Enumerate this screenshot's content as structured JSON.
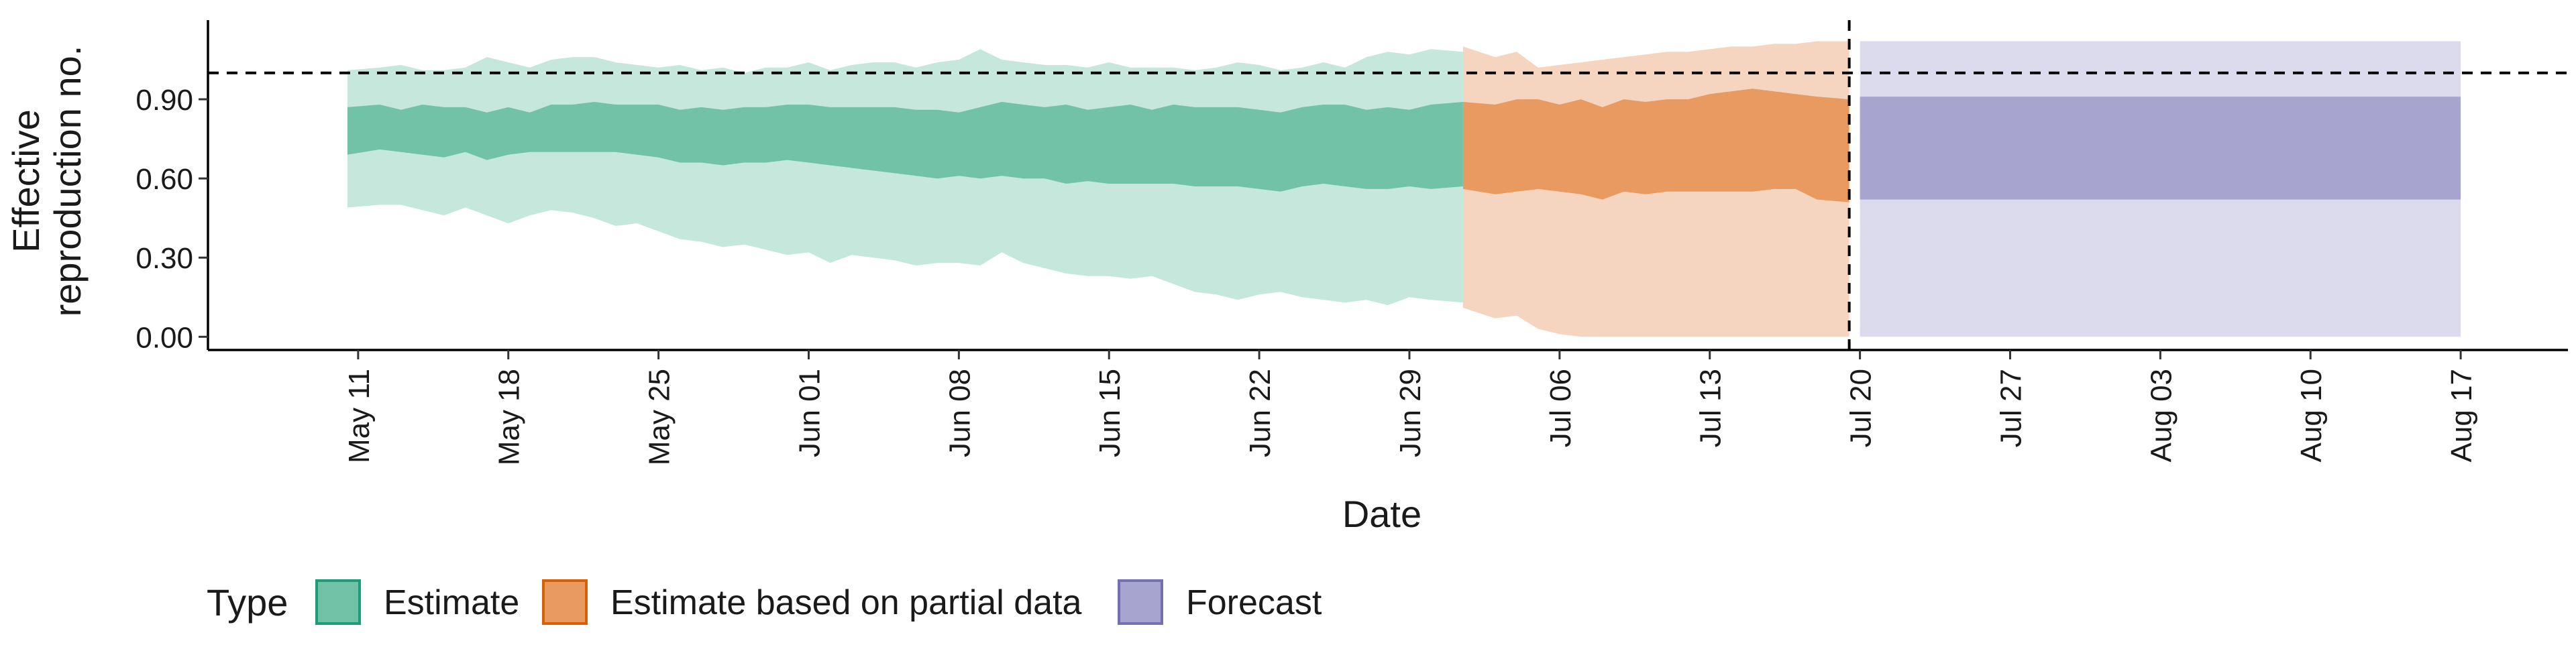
{
  "chart_data": {
    "type": "area",
    "xlabel": "Date",
    "ylabel_lines": [
      "Effective",
      "reproduction no."
    ],
    "ylim": [
      -0.05,
      1.2
    ],
    "yticks": [
      0.0,
      0.3,
      0.6,
      0.9
    ],
    "ytick_labels": [
      "0.00",
      "0.30",
      "0.60",
      "0.90"
    ],
    "x_start": "2020-05-04",
    "x_end": "2020-08-22",
    "xticks": [
      "2020-05-11",
      "2020-05-18",
      "2020-05-25",
      "2020-06-01",
      "2020-06-08",
      "2020-06-15",
      "2020-06-22",
      "2020-06-29",
      "2020-07-06",
      "2020-07-13",
      "2020-07-20",
      "2020-07-27",
      "2020-08-03",
      "2020-08-10",
      "2020-08-17"
    ],
    "xtick_labels": [
      "May 11",
      "May 18",
      "May 25",
      "Jun 01",
      "Jun 08",
      "Jun 15",
      "Jun 22",
      "Jun 29",
      "Jul 06",
      "Jul 13",
      "Jul 20",
      "Jul 27",
      "Aug 03",
      "Aug 10",
      "Aug 17"
    ],
    "reference_line_y": 1.0,
    "vertical_line_date": "2020-07-19",
    "legend": {
      "title": "Type",
      "position": "bottom",
      "items": [
        {
          "label": "Estimate",
          "fill": "#72c2a7",
          "border": "#1b9e77"
        },
        {
          "label": "Estimate based on partial data",
          "fill": "#e89a60",
          "border": "#d95f02"
        },
        {
          "label": "Forecast",
          "fill": "#a8a4d0",
          "border": "#7570b3"
        }
      ]
    },
    "series": [
      {
        "name": "Estimate",
        "inner_color": "#72c2a7",
        "outer_color": "#c5e7dc",
        "dates": [
          "2020-05-11",
          "2020-05-12",
          "2020-05-13",
          "2020-05-14",
          "2020-05-15",
          "2020-05-16",
          "2020-05-17",
          "2020-05-18",
          "2020-05-19",
          "2020-05-20",
          "2020-05-21",
          "2020-05-22",
          "2020-05-23",
          "2020-05-24",
          "2020-05-25",
          "2020-05-26",
          "2020-05-27",
          "2020-05-28",
          "2020-05-29",
          "2020-05-30",
          "2020-05-31",
          "2020-06-01",
          "2020-06-02",
          "2020-06-03",
          "2020-06-04",
          "2020-06-05",
          "2020-06-06",
          "2020-06-07",
          "2020-06-08",
          "2020-06-09",
          "2020-06-10",
          "2020-06-11",
          "2020-06-12",
          "2020-06-13",
          "2020-06-14",
          "2020-06-15",
          "2020-06-16",
          "2020-06-17",
          "2020-06-18",
          "2020-06-19",
          "2020-06-20",
          "2020-06-21",
          "2020-06-22",
          "2020-06-23",
          "2020-06-24",
          "2020-06-25",
          "2020-06-26",
          "2020-06-27",
          "2020-06-28",
          "2020-06-29",
          "2020-06-30",
          "2020-07-01"
        ],
        "lower_90": [
          0.49,
          0.5,
          0.5,
          0.48,
          0.46,
          0.49,
          0.46,
          0.43,
          0.46,
          0.48,
          0.47,
          0.45,
          0.42,
          0.43,
          0.4,
          0.37,
          0.36,
          0.34,
          0.35,
          0.33,
          0.31,
          0.32,
          0.28,
          0.31,
          0.3,
          0.29,
          0.27,
          0.28,
          0.28,
          0.27,
          0.32,
          0.28,
          0.26,
          0.24,
          0.23,
          0.23,
          0.22,
          0.23,
          0.2,
          0.17,
          0.16,
          0.14,
          0.16,
          0.17,
          0.15,
          0.14,
          0.13,
          0.14,
          0.12,
          0.15,
          0.14,
          0.13
        ],
        "lower_50": [
          0.69,
          0.71,
          0.7,
          0.69,
          0.68,
          0.7,
          0.67,
          0.69,
          0.7,
          0.7,
          0.7,
          0.7,
          0.7,
          0.69,
          0.68,
          0.66,
          0.66,
          0.65,
          0.66,
          0.66,
          0.67,
          0.66,
          0.65,
          0.64,
          0.63,
          0.62,
          0.61,
          0.6,
          0.61,
          0.6,
          0.61,
          0.6,
          0.6,
          0.58,
          0.59,
          0.58,
          0.58,
          0.58,
          0.58,
          0.57,
          0.57,
          0.57,
          0.56,
          0.55,
          0.57,
          0.58,
          0.57,
          0.56,
          0.56,
          0.57,
          0.56,
          0.57
        ],
        "upper_50": [
          0.87,
          0.88,
          0.86,
          0.88,
          0.87,
          0.87,
          0.85,
          0.87,
          0.85,
          0.88,
          0.88,
          0.89,
          0.88,
          0.88,
          0.88,
          0.86,
          0.87,
          0.86,
          0.87,
          0.87,
          0.88,
          0.88,
          0.87,
          0.87,
          0.87,
          0.87,
          0.86,
          0.86,
          0.85,
          0.87,
          0.89,
          0.88,
          0.87,
          0.88,
          0.86,
          0.87,
          0.88,
          0.86,
          0.88,
          0.87,
          0.87,
          0.87,
          0.86,
          0.85,
          0.87,
          0.88,
          0.88,
          0.86,
          0.87,
          0.86,
          0.88,
          0.89
        ],
        "upper_90": [
          1.01,
          1.02,
          1.03,
          1.01,
          1.01,
          1.02,
          1.06,
          1.04,
          1.02,
          1.05,
          1.06,
          1.06,
          1.04,
          1.03,
          1.02,
          1.03,
          1.01,
          1.02,
          1.0,
          1.02,
          1.02,
          1.04,
          1.01,
          1.03,
          1.04,
          1.04,
          1.02,
          1.04,
          1.05,
          1.09,
          1.05,
          1.04,
          1.03,
          1.03,
          1.02,
          1.04,
          1.02,
          1.02,
          1.02,
          1.01,
          1.02,
          1.04,
          1.03,
          1.01,
          1.02,
          1.04,
          1.02,
          1.06,
          1.08,
          1.07,
          1.09,
          1.08
        ]
      },
      {
        "name": "Estimate based on partial data",
        "inner_color": "#e89a60",
        "outer_color": "#f5d5bf",
        "dates": [
          "2020-07-02",
          "2020-07-03",
          "2020-07-04",
          "2020-07-05",
          "2020-07-06",
          "2020-07-07",
          "2020-07-08",
          "2020-07-09",
          "2020-07-10",
          "2020-07-11",
          "2020-07-12",
          "2020-07-13",
          "2020-07-14",
          "2020-07-15",
          "2020-07-16",
          "2020-07-17",
          "2020-07-18",
          "2020-07-19"
        ],
        "lower_90": [
          0.11,
          0.07,
          0.08,
          0.03,
          0.01,
          0.0,
          0.0,
          0.0,
          0.0,
          0.0,
          0.0,
          0.0,
          0.0,
          0.0,
          0.0,
          0.0,
          0.0,
          0.0
        ],
        "lower_50": [
          0.56,
          0.54,
          0.55,
          0.56,
          0.55,
          0.54,
          0.52,
          0.55,
          0.54,
          0.55,
          0.55,
          0.55,
          0.55,
          0.55,
          0.56,
          0.56,
          0.52,
          0.51
        ],
        "upper_50": [
          0.89,
          0.88,
          0.9,
          0.9,
          0.88,
          0.9,
          0.87,
          0.9,
          0.89,
          0.9,
          0.9,
          0.92,
          0.93,
          0.94,
          0.93,
          0.92,
          0.91,
          0.9
        ],
        "upper_90": [
          1.1,
          1.06,
          1.08,
          1.02,
          1.03,
          1.04,
          1.05,
          1.06,
          1.07,
          1.08,
          1.08,
          1.09,
          1.1,
          1.1,
          1.11,
          1.11,
          1.12,
          1.12
        ]
      },
      {
        "name": "Forecast",
        "inner_color": "#a8a4d0",
        "outer_color": "#dcdbed",
        "dates": [
          "2020-07-20",
          "2020-08-17"
        ],
        "lower_90": [
          0.0,
          0.0
        ],
        "lower_50": [
          0.52,
          0.52
        ],
        "upper_50": [
          0.91,
          0.91
        ],
        "upper_90": [
          1.12,
          1.12
        ]
      }
    ]
  }
}
